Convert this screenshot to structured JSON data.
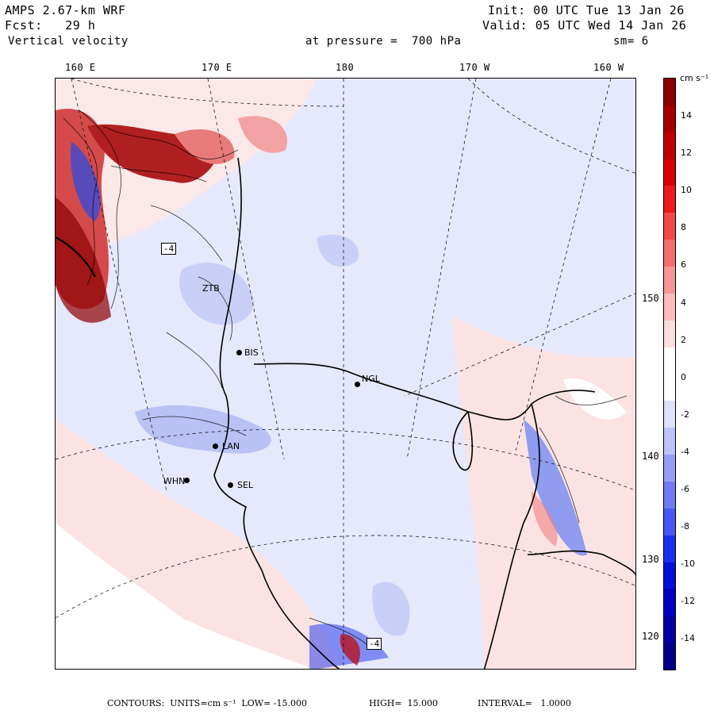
{
  "header": {
    "model": "AMPS 2.67-km WRF",
    "init": "Init: 00 UTC Tue 13 Jan 26",
    "fcst": "Fcst:   29 h",
    "valid": "Valid: 05 UTC Wed 14 Jan 26",
    "field": "Vertical velocity",
    "level": "at pressure =  700 hPa",
    "smooth": "sm= 6"
  },
  "map": {
    "longitude_labels": [
      "160 E",
      "170 E",
      "180",
      "170 W",
      "160 W"
    ],
    "latitude_labels": [
      "150 W",
      "140 W",
      "130 W",
      "120 W"
    ],
    "stations": [
      "BIS",
      "NGL",
      "LAN",
      "WHN",
      "SEL",
      "ZTB"
    ],
    "box_labels": [
      "-4",
      "-4"
    ],
    "colors": {
      "positive_weak": "#f9dede",
      "positive_strong": "#b01010",
      "negative_weak": "#dfe3fb",
      "negative_strong": "#1020c0",
      "land": "#ffffff"
    }
  },
  "colorbar": {
    "units": "cm s⁻¹",
    "tick_labels": [
      "14",
      "12",
      "10",
      "8",
      "6",
      "4",
      "2",
      "0",
      "-2",
      "-4",
      "-6",
      "-8",
      "-10",
      "-12",
      "-14"
    ],
    "colors": [
      "#8b0000",
      "#a50000",
      "#c00000",
      "#d80000",
      "#ee1a1a",
      "#f24848",
      "#f46e6e",
      "#f89595",
      "#fbbcbc",
      "#fddede",
      "#ffffff",
      "#ffffff",
      "#dee2fd",
      "#bcc4fb",
      "#959ff8",
      "#6e7bf4",
      "#4858f2",
      "#1a2fee",
      "#0010d8",
      "#0000c0",
      "#0000a5",
      "#00008b"
    ]
  },
  "footer": {
    "contours": "CONTOURS:  UNITS=cm s⁻¹  LOW= -15.000",
    "high": "HIGH=  15.000",
    "interval": "INTERVAL=   1.0000"
  }
}
